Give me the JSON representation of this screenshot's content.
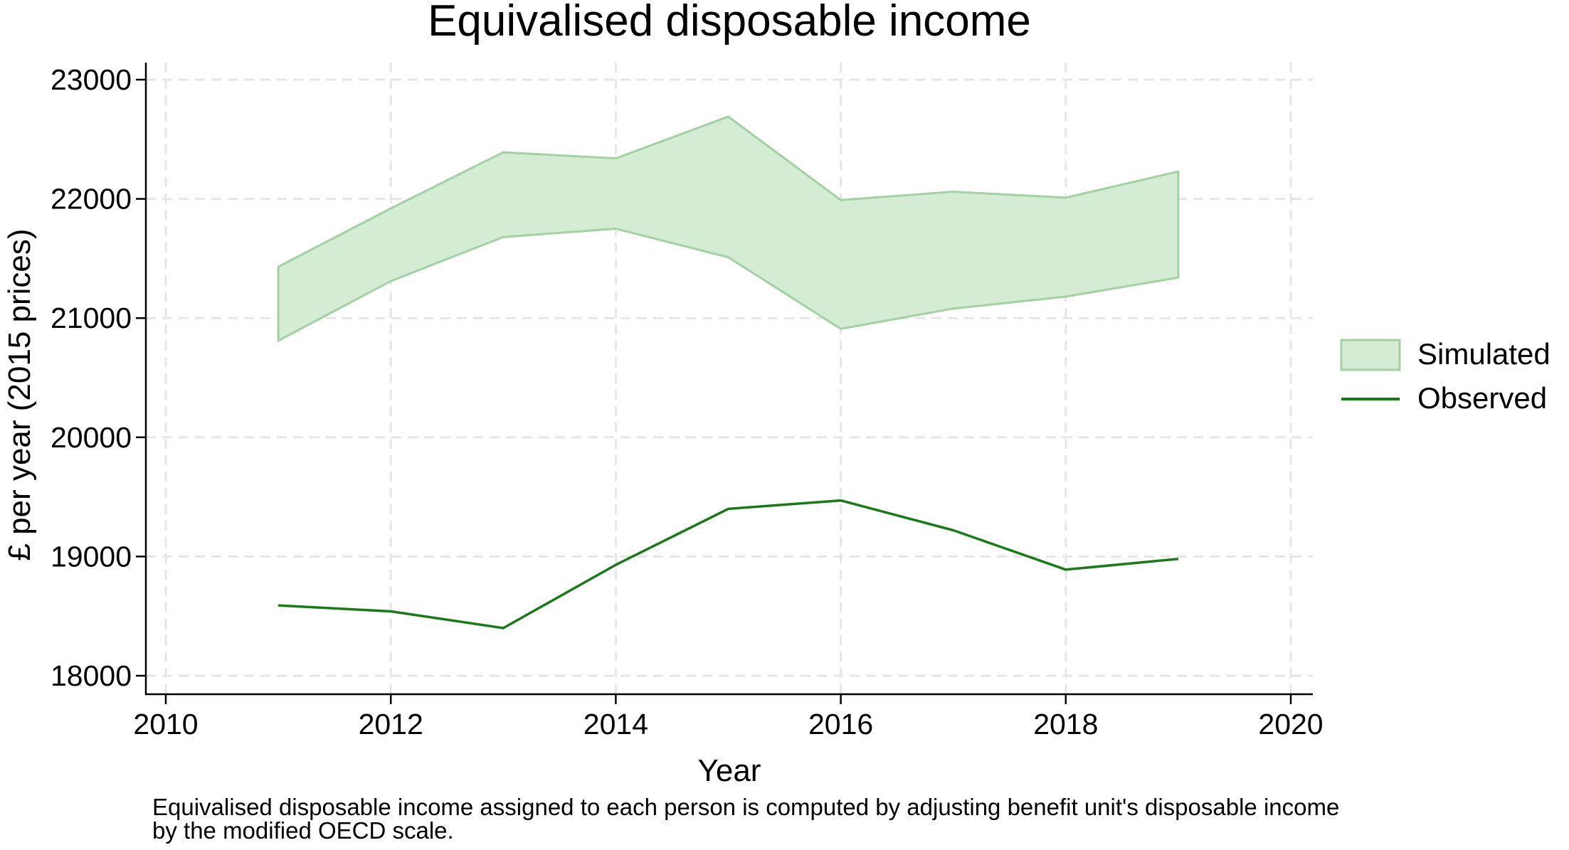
{
  "chart_data": {
    "type": "area",
    "title": "Equivalised disposable income",
    "xlabel": "Year",
    "ylabel": "£ per year (2015 prices)",
    "xlim": [
      2010,
      2020
    ],
    "ylim": [
      18000,
      23000
    ],
    "x_ticks": [
      2010,
      2012,
      2014,
      2016,
      2018,
      2020
    ],
    "y_ticks": [
      18000,
      19000,
      20000,
      21000,
      22000,
      23000
    ],
    "x_tick_labels": [
      "2010",
      "2012",
      "2014",
      "2016",
      "2018",
      "2020"
    ],
    "y_tick_labels": [
      "18000",
      "19000",
      "20000",
      "21000",
      "22000",
      "23000"
    ],
    "grid": true,
    "legend_position": "right",
    "x": [
      2011,
      2012,
      2013,
      2014,
      2015,
      2016,
      2017,
      2018,
      2019
    ],
    "series": [
      {
        "name": "Simulated",
        "kind": "range",
        "upper": [
          21430,
          21920,
          22390,
          22340,
          22690,
          21990,
          22060,
          22010,
          22230
        ],
        "lower": [
          20810,
          21310,
          21680,
          21750,
          21510,
          20910,
          21080,
          21180,
          21340
        ],
        "fill_color": "#d4ebd4",
        "line_color": "#a3d1a3"
      },
      {
        "name": "Observed",
        "kind": "line",
        "values": [
          18590,
          18540,
          18400,
          18930,
          19400,
          19470,
          19220,
          18890,
          18980
        ],
        "line_color": "#1a7a1a"
      }
    ]
  },
  "note": {
    "line1": "Equivalised disposable income assigned to each person is computed by adjusting benefit unit's disposable income",
    "line2": "by the modified OECD scale."
  }
}
